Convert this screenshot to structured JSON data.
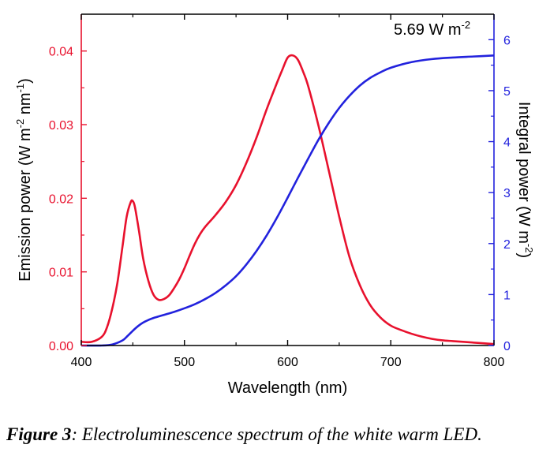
{
  "chart_data": {
    "type": "line",
    "title": "",
    "xlabel": "Wavelength (nm)",
    "ylabel_left": {
      "base": "Emission power (W m",
      "exp1": "-2",
      "mid": " nm",
      "exp2": "-1",
      "end": ")"
    },
    "ylabel_right": {
      "base": "Integral power (W m",
      "exp": "-2",
      "end": ")"
    },
    "xlim": [
      400,
      800
    ],
    "ylim_left": [
      0,
      0.045
    ],
    "ylim_right": [
      0,
      6.5
    ],
    "x_ticks": [
      "400",
      "500",
      "600",
      "700",
      "800"
    ],
    "y_left_ticks": [
      "0.00",
      "0.01",
      "0.02",
      "0.03",
      "0.04"
    ],
    "y_right_ticks": [
      "0",
      "1",
      "2",
      "3",
      "4",
      "5",
      "6"
    ],
    "grid": false,
    "colors": {
      "emission": "#e8112d",
      "integral": "#2222dd",
      "axis": "#000000"
    },
    "annotation": {
      "text": "5.69 W m",
      "exp": "-2",
      "x": 740,
      "y": 6.1
    },
    "series": [
      {
        "axis": "left",
        "color": "#e8112d",
        "x": [
          400,
          410,
          420,
          425,
          430,
          435,
          440,
          444,
          448,
          450,
          452,
          456,
          460,
          465,
          470,
          475,
          480,
          485,
          490,
          495,
          500,
          505,
          510,
          515,
          520,
          530,
          540,
          550,
          560,
          570,
          580,
          590,
          595,
          600,
          605,
          610,
          615,
          620,
          630,
          640,
          650,
          660,
          670,
          680,
          690,
          700,
          710,
          720,
          730,
          740,
          750,
          760,
          770,
          780,
          790,
          800
        ],
        "values": [
          0.0005,
          0.0005,
          0.0012,
          0.0025,
          0.005,
          0.0085,
          0.0135,
          0.0175,
          0.0195,
          0.0196,
          0.0188,
          0.0155,
          0.0118,
          0.0088,
          0.0069,
          0.0062,
          0.0063,
          0.0068,
          0.0078,
          0.009,
          0.0105,
          0.0122,
          0.0138,
          0.0151,
          0.0161,
          0.0177,
          0.0195,
          0.0218,
          0.0248,
          0.0283,
          0.0322,
          0.0358,
          0.0375,
          0.0391,
          0.0394,
          0.0388,
          0.0372,
          0.0352,
          0.0298,
          0.0237,
          0.0175,
          0.012,
          0.0082,
          0.0055,
          0.0038,
          0.0027,
          0.0021,
          0.0016,
          0.0012,
          0.0009,
          0.0007,
          0.0006,
          0.0005,
          0.0004,
          0.0003,
          0.0002
        ]
      },
      {
        "axis": "right",
        "color": "#2222dd",
        "x": [
          400,
          420,
          430,
          440,
          445,
          450,
          455,
          460,
          465,
          470,
          480,
          490,
          500,
          510,
          520,
          530,
          540,
          550,
          560,
          570,
          580,
          590,
          600,
          610,
          620,
          630,
          640,
          650,
          660,
          670,
          680,
          690,
          700,
          720,
          740,
          760,
          780,
          800
        ],
        "values": [
          0,
          0,
          0.02,
          0.1,
          0.19,
          0.29,
          0.38,
          0.45,
          0.5,
          0.54,
          0.6,
          0.66,
          0.73,
          0.81,
          0.91,
          1.03,
          1.18,
          1.36,
          1.59,
          1.86,
          2.17,
          2.52,
          2.9,
          3.29,
          3.67,
          4.04,
          4.37,
          4.66,
          4.9,
          5.1,
          5.25,
          5.36,
          5.45,
          5.56,
          5.62,
          5.65,
          5.67,
          5.69
        ]
      }
    ]
  },
  "caption": {
    "label": "Figure 3",
    "text": ": Electroluminescence spectrum of the white warm LED."
  }
}
